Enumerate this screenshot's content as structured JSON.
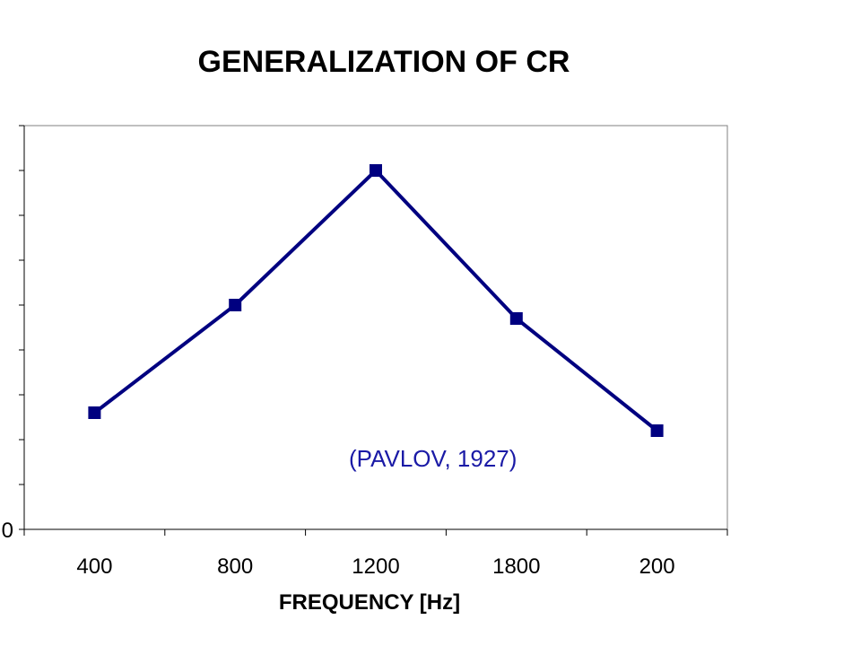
{
  "chart_data": {
    "type": "line",
    "title": "GENERALIZATION OF CR",
    "xlabel": "FREQUENCY [Hz]",
    "ylabel": "",
    "categories": [
      "400",
      "800",
      "1200",
      "1800",
      "200"
    ],
    "series": [
      {
        "values": [
          2.6,
          5.0,
          8.0,
          4.7,
          2.2
        ]
      }
    ],
    "ylim": [
      0,
      9
    ],
    "y_tick_labels": [
      "0"
    ],
    "grid": false,
    "legend": "none",
    "annotations": [
      {
        "text": "(PAVLOV, 1927)"
      }
    ],
    "colors": {
      "series": "#000080",
      "annotation": "#1a1aa6",
      "axis": "#808080"
    }
  }
}
